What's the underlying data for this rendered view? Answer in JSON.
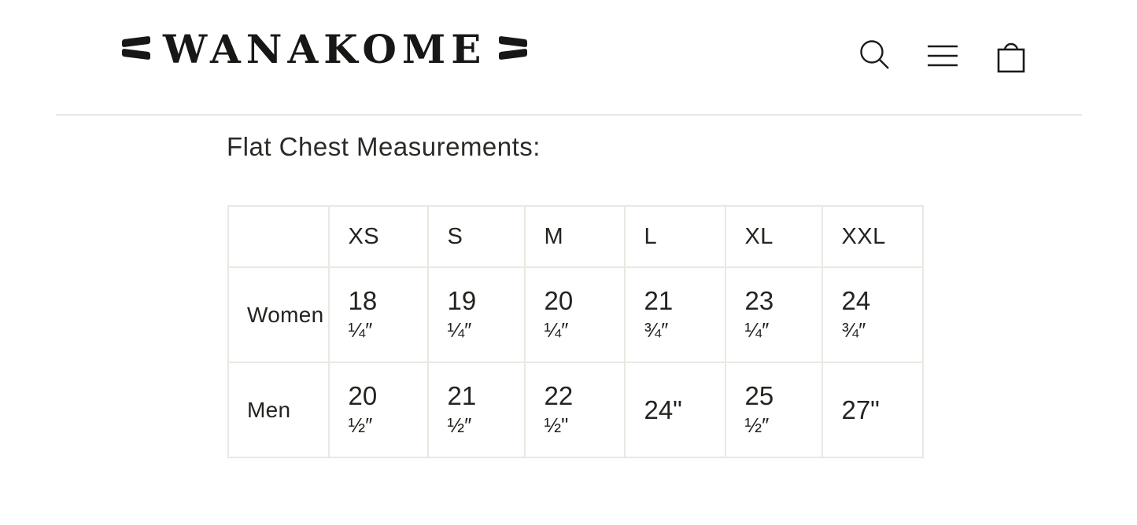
{
  "header": {
    "logo_text": "WANAKOME",
    "icons": {
      "search": "search-icon",
      "menu": "hamburger-menu-icon",
      "cart": "shopping-bag-icon"
    },
    "icon_color": "#1c1b1a"
  },
  "divider_color": "#e8e6e1",
  "content": {
    "heading": "Flat Chest Measurements:"
  },
  "size_table": {
    "columns": [
      "",
      "XS",
      "S",
      "M",
      "L",
      "XL",
      "XXL"
    ],
    "rows": [
      {
        "label": "Women",
        "values": [
          [
            "18",
            "¼″"
          ],
          [
            "19",
            "¼″"
          ],
          [
            "20",
            "¼″"
          ],
          [
            "21",
            "¾″"
          ],
          [
            "23",
            "¼″"
          ],
          [
            "24",
            "¾″"
          ]
        ]
      },
      {
        "label": "Men",
        "values": [
          [
            "20",
            "½″"
          ],
          [
            "21",
            "½″"
          ],
          [
            "22",
            "½\""
          ],
          [
            "24\"",
            ""
          ],
          [
            "25",
            "½″"
          ],
          [
            "27\"",
            ""
          ]
        ]
      }
    ],
    "border_color": "#eae8e1",
    "text_color": "#24231f"
  }
}
